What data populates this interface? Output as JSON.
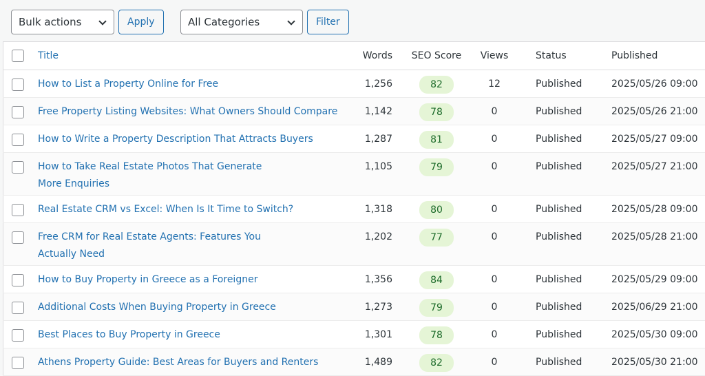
{
  "toolbar": {
    "bulk_actions": "Bulk actions",
    "apply": "Apply",
    "categories": "All Categories",
    "filter": "Filter"
  },
  "table": {
    "headers": [
      "Title",
      "Words",
      "SEO Score",
      "Views",
      "Status",
      "Published"
    ],
    "rows": [
      [
        "How to List a Property Online for Free",
        "1,256",
        82,
        12,
        "Published",
        "2025/05/26 09:00"
      ],
      [
        "Free Property Listing Websites: What Owners Should Compare",
        "1,142",
        78,
        0,
        "Published",
        "2025/05/26 21:00"
      ],
      [
        "How to Write a Property Description That Attracts Buyers",
        "1,287",
        81,
        0,
        "Published",
        "2025/05/27 09:00"
      ],
      [
        "How to Take Real Estate Photos That Generate More Enquiries",
        "1,105",
        79,
        0,
        "Published",
        "2025/05/27 21:00"
      ],
      [
        "Real Estate CRM vs Excel: When Is It Time to Switch?",
        "1,318",
        80,
        0,
        "Published",
        "2025/05/28 09:00"
      ],
      [
        "Free CRM for Real Estate Agents: Features You Actually Need",
        "1,202",
        77,
        0,
        "Published",
        "2025/05/28 21:00"
      ],
      [
        "How to Buy Property in Greece as a Foreigner",
        "1,356",
        84,
        0,
        "Published",
        "2025/05/29 09:00"
      ],
      [
        "Additional Costs When Buying Property in Greece",
        "1,273",
        79,
        0,
        "Published",
        "2025/06/29 21:00"
      ],
      [
        "Best Places to Buy Property in Greece",
        "1,301",
        78,
        0,
        "Published",
        "2025/05/30 09:00"
      ],
      [
        "Athens Property Guide: Best Areas for Buyers and Renters",
        "1,489",
        82,
        0,
        "Published",
        "2025/05/30 21:00"
      ]
    ]
  }
}
